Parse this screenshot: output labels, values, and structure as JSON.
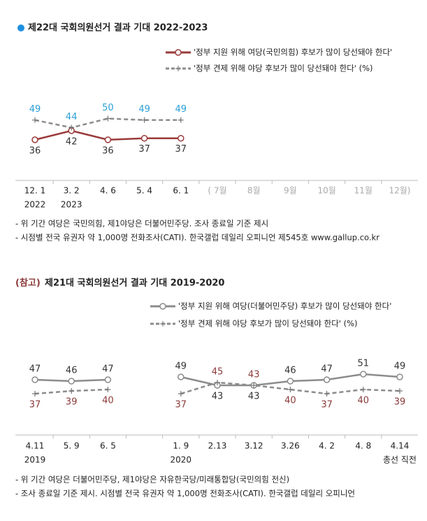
{
  "chart_data": [
    {
      "type": "line",
      "title": "제22대 국회의원선거 결과 기대 2022-2023",
      "categories": [
        "12. 1",
        "3. 2",
        "4. 6",
        "5. 4",
        "6. 1",
        "( 7월",
        "8월",
        "9월",
        "10월",
        "11월",
        "12월)"
      ],
      "sublabels": [
        "2022",
        "2023",
        null,
        null,
        null,
        null,
        null,
        null,
        null,
        null,
        null
      ],
      "series": [
        {
          "name": "'정부 지원 위해 여당(국민의힘) 후보가 많이 당선돼야 한다'",
          "color": "#9b3a3a",
          "label_color": "#333333",
          "dashed": false,
          "values": [
            36,
            42,
            36,
            37,
            37,
            null,
            null,
            null,
            null,
            null,
            null
          ]
        },
        {
          "name": "'정부 견제 위해 야당 후보가 많이 당선돼야 한다' (%)",
          "color": "#8c8c8c",
          "label_color": "#2a9fd8",
          "dashed": true,
          "values": [
            49,
            44,
            50,
            49,
            49,
            null,
            null,
            null,
            null,
            null,
            null
          ]
        }
      ],
      "ylim": [
        0,
        100
      ],
      "notes": [
        "- 위 기간 여당은 국민의힘, 제1야당은 더불어민주당. 조사 종료일 기준 제시",
        "- 시점별 전국 유권자 약 1,000명 전화조사(CATI). 한국갤럽 데일리 오피니언 제545호 www.gallup.co.kr"
      ]
    },
    {
      "type": "line",
      "title_prefix": "(참고)",
      "title": "제21대 국회의원선거 결과 기대 2019-2020",
      "categories": [
        "4.11",
        "5. 9",
        "6. 5",
        null,
        "1. 9",
        "2.13",
        "3.12",
        "3.26",
        "4. 2",
        "4. 8",
        "4.14"
      ],
      "sublabels": [
        "2019",
        null,
        null,
        null,
        "2020",
        null,
        null,
        null,
        null,
        null,
        "총선 직전"
      ],
      "series": [
        {
          "name": "'정부 지원 위해 여당(더불어민주당) 후보가 많이 당선돼야 한다'",
          "color": "#8c8c8c",
          "label_color": "#333333",
          "dashed": false,
          "values": [
            47,
            46,
            47,
            null,
            49,
            43,
            43,
            46,
            47,
            51,
            49
          ]
        },
        {
          "name": "'정부 견제 위해 야당 후보가 많이 당선돼야 한다' (%)",
          "color": "#8c8c8c",
          "label_color": "#8b3a3a",
          "dashed": true,
          "values": [
            37,
            39,
            40,
            null,
            37,
            45,
            43,
            40,
            37,
            40,
            39
          ]
        }
      ],
      "ylim": [
        0,
        100
      ],
      "notes": [
        "- 위 기간 여당은 더불어민주당, 제1야당은 자유한국당/미래통합당(국민의힘 전신)",
        "- 조사 종료일 기준 제시. 시점별 전국 유권자 약 1,000명 전화조사(CATI). 한국갤럽 데일리 오피니언"
      ]
    }
  ]
}
